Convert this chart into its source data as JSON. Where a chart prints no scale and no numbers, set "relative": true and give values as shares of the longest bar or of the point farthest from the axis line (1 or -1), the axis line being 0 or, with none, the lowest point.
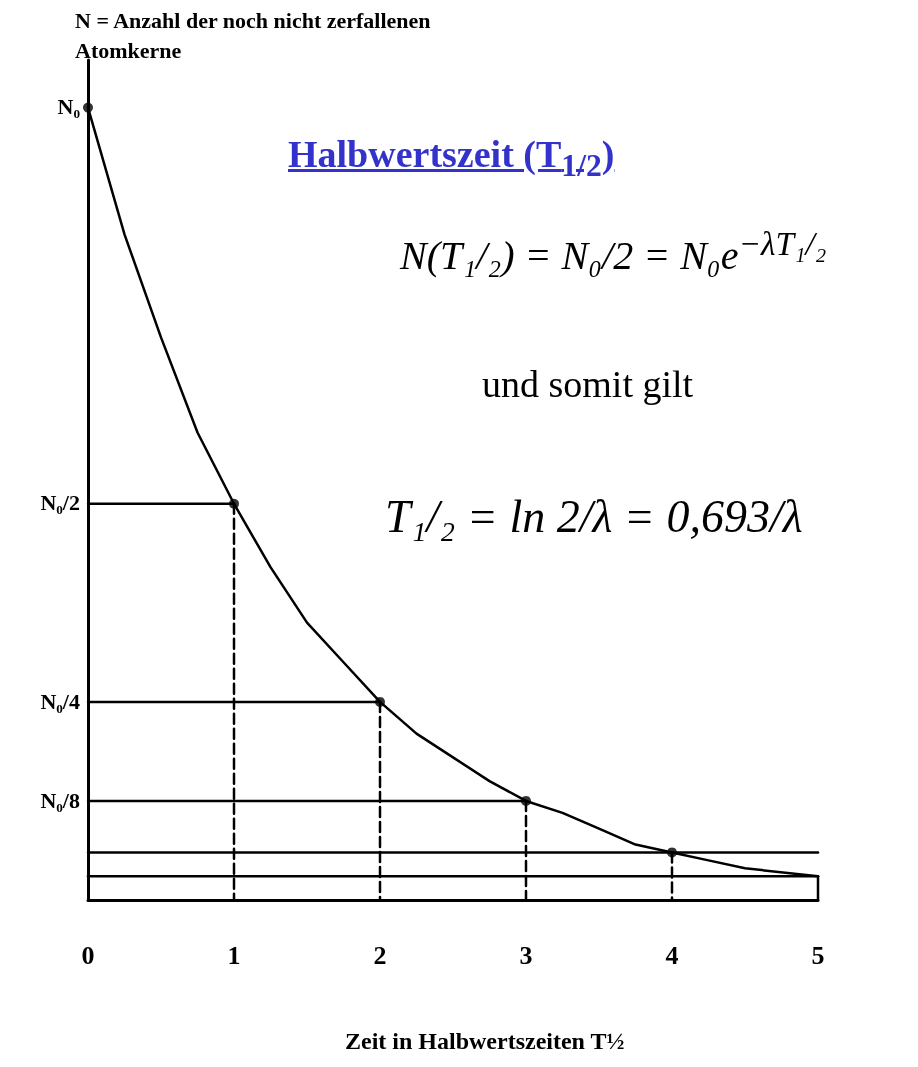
{
  "chart_data": {
    "type": "line",
    "title": "Halbwertszeit (T$_{1/2}$)",
    "ylabel": "N = Anzahl der noch nicht zerfallenen Atomkerne",
    "xlabel": "Zeit in Halbwertszeiten T½",
    "relative": true,
    "annotations": [
      "N(T₁/₂) = N₀/2 = N₀e$^{−λT₁/₂}$",
      "und somit gilt",
      "T₁/₂ = ln 2/λ = 0,693/λ",
      "N₀",
      "N₀/2",
      "N₀/4",
      "N₀/8"
    ],
    "xlim": [
      0,
      5
    ],
    "xticks": [
      0,
      1,
      2,
      3,
      4,
      5
    ],
    "grid": false,
    "marker": "none",
    "line_style": "solid",
    "series": [
      {
        "color": "#000000",
        "x": [
          0,
          0.25,
          0.5,
          0.75,
          1,
          1.25,
          1.5,
          1.75,
          2,
          2.25,
          2.5,
          2.75,
          3,
          3.25,
          3.5,
          3.75,
          4,
          4.25,
          4.5,
          5
        ],
        "values": [
          1,
          0.84,
          0.71,
          0.59,
          0.5,
          0.42,
          0.35,
          0.3,
          0.25,
          0.21,
          0.18,
          0.15,
          0.125,
          0.11,
          0.09,
          0.07,
          0.06,
          0.05,
          0.04,
          0.03
        ]
      },
      {
        "type": "scatter",
        "color": "#000000",
        "marker": "circle",
        "x": [
          0,
          1,
          2,
          3,
          4
        ],
        "values": [
          1,
          0.5,
          0.25,
          0.125,
          0.06
        ]
      },
      {
        "color": "#000000",
        "x": [
          0,
          1
        ],
        "values": [
          0.5,
          0.5
        ]
      },
      {
        "color": "#000000",
        "x": [
          0,
          2
        ],
        "values": [
          0.25,
          0.25
        ]
      },
      {
        "color": "#000000",
        "x": [
          0,
          3
        ],
        "values": [
          0.125,
          0.125
        ]
      },
      {
        "color": "#000000",
        "x": [
          0,
          5
        ],
        "values": [
          0.06,
          0.06
        ]
      },
      {
        "color": "#000000",
        "x": [
          0,
          5
        ],
        "values": [
          0.03,
          0.03
        ]
      },
      {
        "color": "#000000",
        "line_style": "dashed",
        "x": [
          1,
          1
        ],
        "values": [
          0.5,
          0
        ]
      },
      {
        "color": "#000000",
        "line_style": "dashed",
        "x": [
          2,
          2
        ],
        "values": [
          0.25,
          0
        ]
      },
      {
        "color": "#000000",
        "line_style": "dashed",
        "x": [
          3,
          3
        ],
        "values": [
          0.125,
          0
        ]
      },
      {
        "color": "#000000",
        "line_style": "dashed",
        "x": [
          4,
          4
        ],
        "values": [
          0.06,
          0
        ]
      },
      {
        "color": "#000000",
        "x": [
          5,
          5
        ],
        "values": [
          0.03,
          0
        ]
      }
    ]
  }
}
